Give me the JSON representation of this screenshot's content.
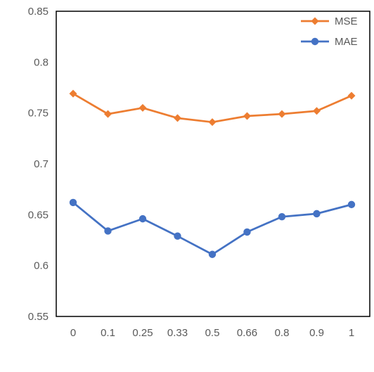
{
  "chart_data": {
    "type": "line",
    "categories": [
      "0",
      "0.1",
      "0.25",
      "0.33",
      "0.5",
      "0.66",
      "0.8",
      "0.9",
      "1"
    ],
    "series": [
      {
        "name": "MSE",
        "color": "#ed7d31",
        "marker": "diamond",
        "values": [
          0.769,
          0.749,
          0.755,
          0.745,
          0.741,
          0.747,
          0.749,
          0.752,
          0.767
        ]
      },
      {
        "name": "MAE",
        "color": "#4472c4",
        "marker": "circle",
        "values": [
          0.662,
          0.634,
          0.646,
          0.629,
          0.611,
          0.633,
          0.648,
          0.651,
          0.66
        ]
      }
    ],
    "yticks": [
      "0.55",
      "0.6",
      "0.65",
      "0.7",
      "0.75",
      "0.8",
      "0.85"
    ],
    "ylim": [
      0.55,
      0.85
    ],
    "grid": false,
    "legend_position": "top-right"
  }
}
